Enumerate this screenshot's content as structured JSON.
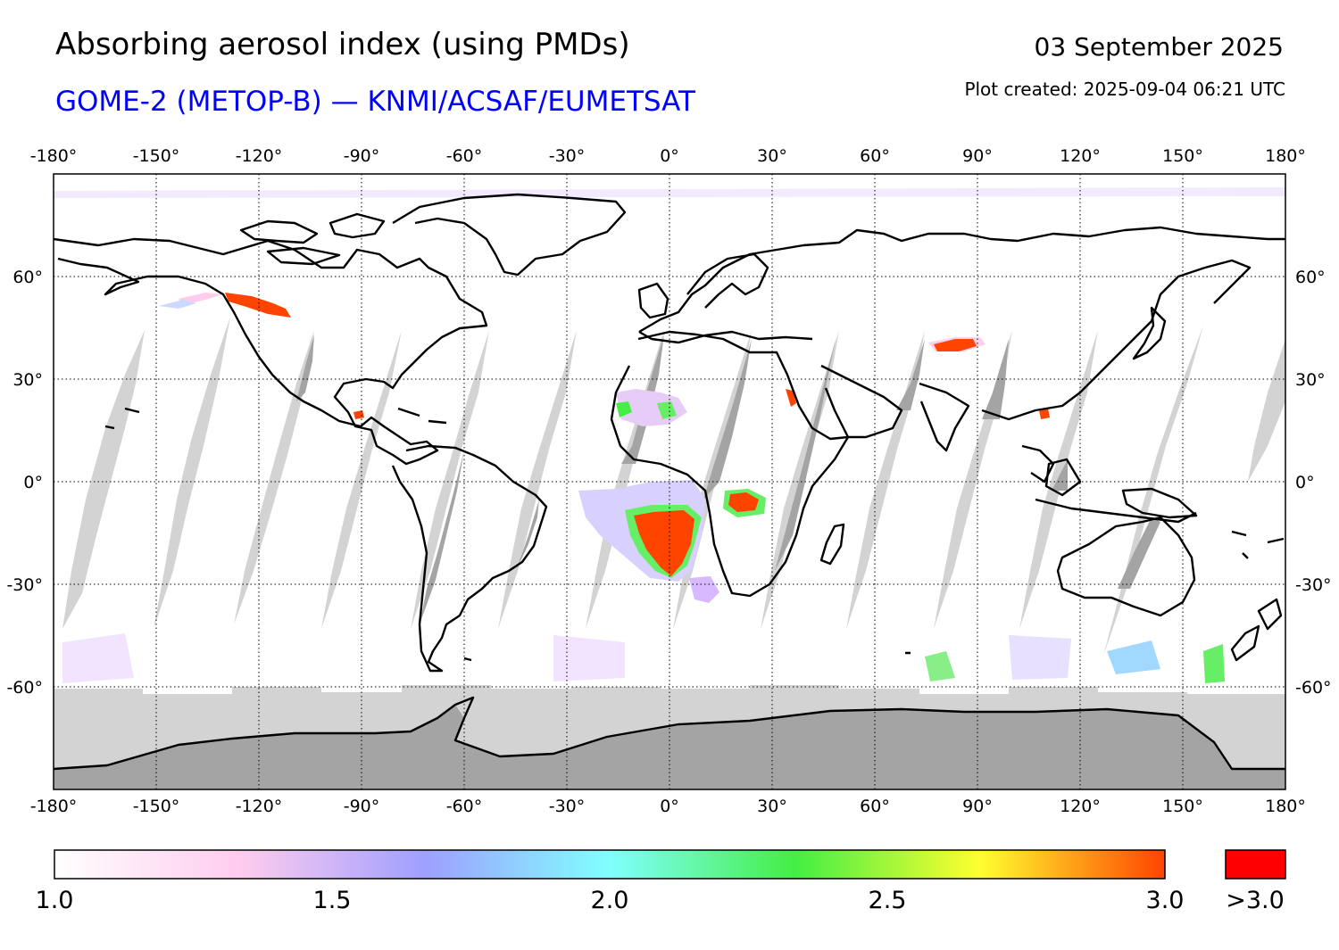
{
  "header": {
    "title": "Absorbing aerosol index (using PMDs)",
    "subtitle": "GOME-2 (METOP-B) — KNMI/ACSAF/EUMETSAT",
    "date": "03 September 2025",
    "created": "Plot created: 2025-09-04 06:21 UTC"
  },
  "map": {
    "lon_range": [
      -180,
      180
    ],
    "lat_range": [
      -90,
      90
    ],
    "lon_ticks": [
      "-180°",
      "-150°",
      "-120°",
      "-90°",
      "-60°",
      "-30°",
      "0°",
      "30°",
      "60°",
      "90°",
      "120°",
      "150°",
      "180°"
    ],
    "lat_ticks": [
      "60°",
      "30°",
      "0°",
      "-30°",
      "-60°"
    ],
    "grid": true,
    "gap_color": "#d3d3d3",
    "land_gap_color": "#a4a4a4"
  },
  "colorbar": {
    "min": 1.0,
    "max": 3.0,
    "labels": [
      "1.0",
      "1.5",
      "2.0",
      "2.5",
      "3.0"
    ],
    "over_label": ">3.0",
    "over_color": "#ff0000",
    "stops": [
      "#ffffff",
      "#ffccee",
      "#9f9fff",
      "#80ffff",
      "#44ee44",
      "#ffff30",
      "#ff4400"
    ]
  }
}
